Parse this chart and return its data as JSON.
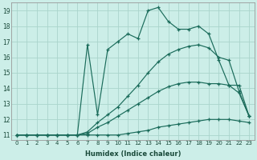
{
  "xlabel": "Humidex (Indice chaleur)",
  "background_color": "#cceee8",
  "grid_color": "#aad4cc",
  "line_color": "#1a6b5a",
  "xlim_min": -0.5,
  "xlim_max": 23.5,
  "ylim_min": 10.7,
  "ylim_max": 19.5,
  "xticks": [
    0,
    1,
    2,
    3,
    4,
    5,
    6,
    7,
    8,
    9,
    10,
    11,
    12,
    13,
    14,
    15,
    16,
    17,
    18,
    19,
    20,
    21,
    22,
    23
  ],
  "yticks": [
    11,
    12,
    13,
    14,
    15,
    16,
    17,
    18,
    19
  ],
  "line1_x": [
    0,
    1,
    2,
    3,
    4,
    5,
    6,
    7,
    8,
    9,
    10,
    11,
    12,
    13,
    14,
    15,
    16,
    17,
    18,
    19,
    20,
    21,
    22,
    23
  ],
  "line1_y": [
    11,
    11,
    11,
    11,
    11,
    11,
    11,
    11,
    11,
    11,
    11,
    11.1,
    11.2,
    11.3,
    11.5,
    11.6,
    11.7,
    11.8,
    11.9,
    12.0,
    12.0,
    12.0,
    11.9,
    11.8
  ],
  "line2_x": [
    0,
    1,
    2,
    3,
    4,
    5,
    6,
    7,
    8,
    9,
    10,
    11,
    12,
    13,
    14,
    15,
    16,
    17,
    18,
    19,
    20,
    21,
    22,
    23
  ],
  "line2_y": [
    11,
    11,
    11,
    11,
    11,
    11,
    11,
    11.1,
    11.5,
    11.8,
    12.2,
    12.6,
    13.0,
    13.4,
    13.8,
    14.1,
    14.3,
    14.4,
    14.4,
    14.3,
    14.3,
    14.2,
    13.7,
    12.2
  ],
  "line3_x": [
    0,
    1,
    2,
    3,
    4,
    5,
    6,
    7,
    8,
    9,
    10,
    11,
    12,
    13,
    14,
    15,
    16,
    17,
    18,
    19,
    20,
    21,
    22,
    23
  ],
  "line3_y": [
    11,
    11,
    11,
    11,
    11,
    11,
    11,
    11.2,
    11.8,
    12.3,
    12.8,
    13.5,
    14.2,
    15.0,
    15.7,
    16.2,
    16.5,
    16.7,
    16.8,
    16.6,
    16.0,
    15.8,
    13.8,
    12.2
  ],
  "line4_x": [
    0,
    1,
    2,
    3,
    4,
    5,
    6,
    7,
    8,
    9,
    10,
    11,
    12,
    13,
    14,
    15,
    16,
    17,
    18,
    19,
    20,
    21,
    22,
    23
  ],
  "line4_y": [
    11,
    11,
    11,
    11,
    11,
    11,
    11,
    16.8,
    12.3,
    16.5,
    17.0,
    17.5,
    17.2,
    19.0,
    19.2,
    18.3,
    17.8,
    17.8,
    18.0,
    17.5,
    15.8,
    14.2,
    14.2,
    12.2
  ]
}
